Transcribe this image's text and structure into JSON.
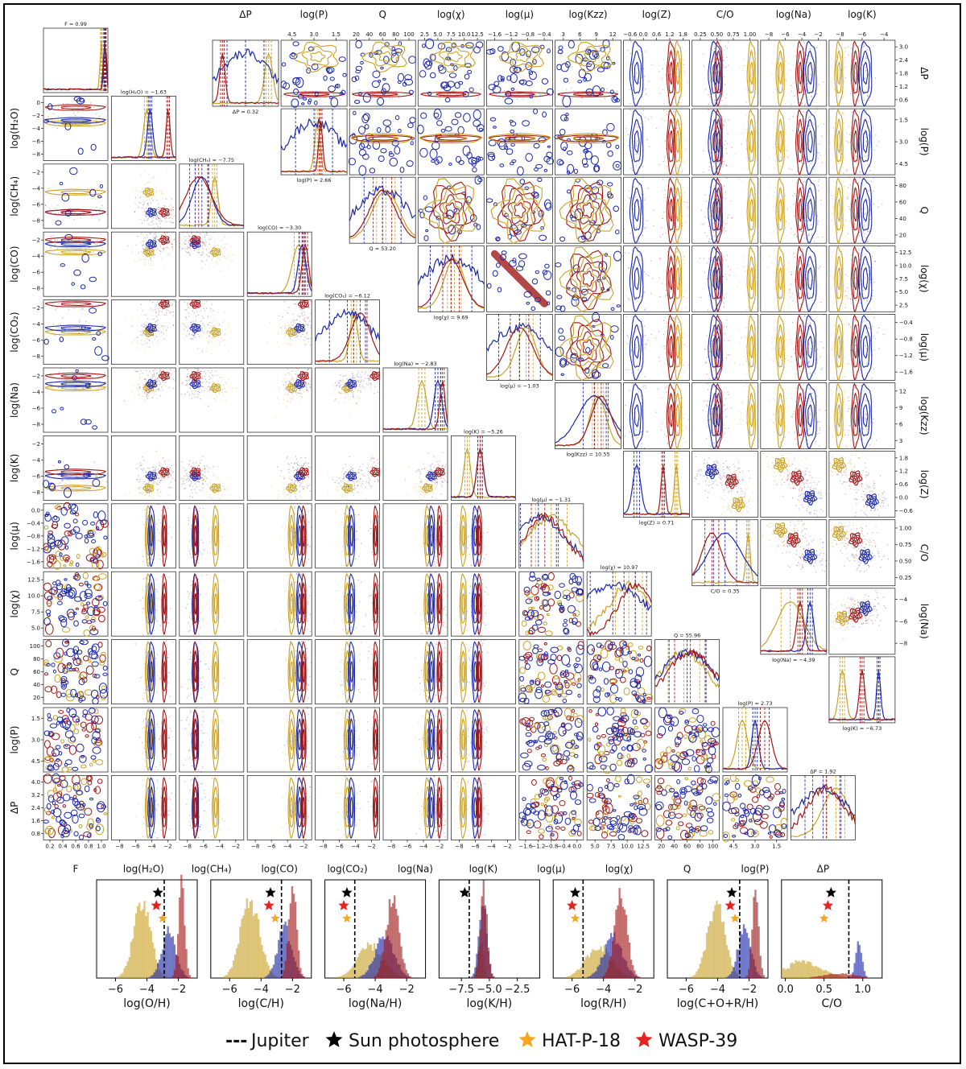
{
  "chart_data": [
    {
      "type": "corner",
      "name": "lower-corner",
      "x_params": [
        "F",
        "log(H₂O)",
        "log(CH₄)",
        "log(CO)",
        "log(CO₂)",
        "log(Na)",
        "log(K)",
        "log(μ)",
        "log(χ)",
        "Q",
        "log(P)",
        "ΔP"
      ],
      "row_params": [
        "log(H₂O)",
        "log(CH₄)",
        "log(CO)",
        "log(CO₂)",
        "log(Na)",
        "log(K)",
        "log(μ)",
        "log(χ)",
        "Q",
        "log(P)",
        "ΔP"
      ],
      "diag_titles": [
        "F = 0.99",
        "log(H₂O) = −1.63",
        "log(CH₄) = −7.75",
        "log(CO) = −3.30",
        "log(CO₂) = −6.12",
        "log(Na) = −2.83",
        "log(K) = −5.26",
        "log(μ) = −1.31",
        "log(χ) = 10.97",
        "Q = 55.96",
        "log(P) = 2.73",
        "ΔP = 1.92"
      ],
      "x_ticks": [
        [
          "0.2",
          "0.4",
          "0.6",
          "0.8",
          "1.0"
        ],
        [
          "−8",
          "−6",
          "−4",
          "−2"
        ],
        [
          "−8",
          "−6",
          "−4",
          "−2"
        ],
        [
          "−8",
          "−6",
          "−4",
          "−2"
        ],
        [
          "−8",
          "−6",
          "−4",
          "−2"
        ],
        [
          "−8",
          "−6",
          "−4",
          "−2"
        ],
        [
          "−8",
          "−6",
          "−4",
          "−2"
        ],
        [
          "−1.6",
          "−1.2",
          "−0.8",
          "−0.4",
          "0.0"
        ],
        [
          "5.0",
          "7.5",
          "10.0",
          "12.5"
        ],
        [
          "20",
          "40",
          "60",
          "80",
          "100"
        ],
        [
          "4.5",
          "3.0",
          "1.5"
        ],
        [
          "0.8",
          "1.6",
          "2.4",
          "3.2",
          "4.0"
        ]
      ],
      "row_ticks": [
        [
          "0",
          "−2",
          "−4",
          "−6",
          "−8"
        ],
        [
          "−2",
          "−4",
          "−6",
          "−8"
        ],
        [
          "−2",
          "−4",
          "−6",
          "−8"
        ],
        [
          "−2",
          "−4",
          "−6",
          "−8"
        ],
        [
          "−2",
          "−4",
          "−6",
          "−8"
        ],
        [
          "−2",
          "−4",
          "−6",
          "−8"
        ],
        [
          "0.0",
          "−0.4",
          "−0.8",
          "−1.2",
          "−1.6"
        ],
        [
          "12.5",
          "10.0",
          "7.5",
          "5.0"
        ],
        [
          "100",
          "80",
          "60",
          "40",
          "20"
        ],
        [
          "1.5",
          "3.0",
          "4.5"
        ],
        [
          "4.0",
          "3.2",
          "2.4",
          "1.6",
          "0.8"
        ]
      ],
      "ranges": [
        [
          0,
          1
        ],
        [
          -9,
          0
        ],
        [
          -9,
          -1
        ],
        [
          -9,
          -1
        ],
        [
          -9,
          -1
        ],
        [
          -9,
          -1
        ],
        [
          -9,
          -1
        ],
        [
          -1.8,
          0.1
        ],
        [
          2.5,
          14
        ],
        [
          10,
          100
        ],
        [
          6,
          0
        ],
        [
          0,
          4.2
        ]
      ],
      "cluster_centers": {
        "blue": [
          null,
          -3.4,
          -7.0,
          -2.5,
          -4.5,
          -3.0,
          -6.0,
          null,
          null,
          null,
          null,
          null
        ],
        "gold": [
          null,
          -3.8,
          -4.5,
          -3.5,
          -5.0,
          -3.5,
          -7.5,
          null,
          null,
          null,
          null,
          null
        ],
        "red": [
          null,
          -1.6,
          -7.0,
          -2.0,
          -1.5,
          -2.0,
          -5.5,
          null,
          null,
          null,
          null,
          null
        ]
      }
    },
    {
      "type": "corner",
      "name": "upper-corner",
      "col_params": [
        "ΔP",
        "log(P)",
        "Q",
        "log(χ)",
        "log(μ)",
        "log(Kzz)",
        "log(Z)",
        "C/O",
        "log(Na)",
        "log(K)"
      ],
      "row_params": [
        "ΔP",
        "log(P)",
        "Q",
        "log(χ)",
        "log(μ)",
        "log(Kzz)",
        "log(Z)",
        "C/O",
        "log(Na)"
      ],
      "diag_titles": [
        "ΔP = 0.32",
        "log(P) = 2.66",
        "Q = 53.20",
        "log(χ) = 9.69",
        "log(μ) = −1.03",
        "log(Kzz) = 10.55",
        "log(Z) = 0.71",
        "C/O = 0.35",
        "log(Na) = −4.39",
        "log(K) = −6.73"
      ],
      "top_ticks": [
        [
          "0.6",
          "1.2",
          "1.8",
          "2.4",
          "3.0"
        ],
        [
          "4.5",
          "3.0",
          "1.5"
        ],
        [
          "20",
          "40",
          "60",
          "80",
          "100"
        ],
        [
          "2.5",
          "5.0",
          "7.5",
          "10.0",
          "12.5"
        ],
        [
          "−1.6",
          "−1.2",
          "−0.8",
          "−0.4"
        ],
        [
          "3",
          "6",
          "9",
          "12"
        ],
        [
          "−0.6",
          "0.0",
          "0.6",
          "1.2",
          "1.8"
        ],
        [
          "0.25",
          "0.50",
          "0.75",
          "1.00"
        ],
        [
          "−8",
          "−6",
          "−4",
          "−2"
        ],
        [
          "−8",
          "−6",
          "−4"
        ]
      ],
      "right_ticks": [
        [
          "3.0",
          "2.4",
          "1.8",
          "1.2",
          "0.6"
        ],
        [
          "1.5",
          "3.0",
          "4.5"
        ],
        [
          "80",
          "60",
          "40",
          "20"
        ],
        [
          "12.5",
          "10.0",
          "7.5",
          "5.0",
          "2.5"
        ],
        [
          "−0.4",
          "−0.8",
          "−1.2",
          "−1.6"
        ],
        [
          "12",
          "9",
          "6",
          "3"
        ],
        [
          "1.8",
          "1.2",
          "0.6",
          "0.0",
          "−0.6"
        ],
        [
          "1.00",
          "0.75",
          "0.50",
          "0.25"
        ],
        [
          "−4",
          "−6",
          "−8"
        ]
      ]
    },
    {
      "type": "bar",
      "name": "histograms",
      "panels": [
        {
          "xlabel": "log(O/H)",
          "xticks": [
            "−6",
            "−4",
            "−2"
          ],
          "xlim": [
            -7.2,
            -0.8
          ],
          "jupiter": -2.9,
          "sun": -3.3,
          "wasp39": -3.4,
          "hatp18": -3.0,
          "gold": {
            "center": -4.3,
            "width": 0.55,
            "peak": 0.8
          },
          "blue": {
            "center": -2.6,
            "width": 0.45,
            "peak": 0.5
          },
          "red": {
            "center": -1.8,
            "width": 0.2,
            "peak": 1.0
          }
        },
        {
          "xlabel": "log(C/H)",
          "xticks": [
            "−6",
            "−4",
            "−2"
          ],
          "xlim": [
            -7.2,
            -0.8
          ],
          "jupiter": -2.7,
          "sun": -3.4,
          "wasp39": -3.5,
          "hatp18": -3.1,
          "gold": {
            "center": -4.7,
            "width": 0.6,
            "peak": 0.85
          },
          "blue": {
            "center": -2.5,
            "width": 0.45,
            "peak": 0.55
          },
          "red": {
            "center": -2.0,
            "width": 0.25,
            "peak": 1.0
          }
        },
        {
          "xlabel": "log(Na/H)",
          "xticks": [
            "−6",
            "−4",
            "−2"
          ],
          "xlim": [
            -7.2,
            -0.8
          ],
          "jupiter": -5.3,
          "sun": -5.8,
          "wasp39": -6.0,
          "hatp18": -5.8,
          "gold": {
            "center": -4.3,
            "width": 0.8,
            "peak": 0.35
          },
          "blue": {
            "center": -3.4,
            "width": 0.6,
            "peak": 0.45
          },
          "red": {
            "center": -2.9,
            "width": 0.4,
            "peak": 0.9
          }
        },
        {
          "xlabel": "log(K/H)",
          "xticks": [
            "−7.5",
            "−5.0",
            "−2.5"
          ],
          "xlim": [
            -9.5,
            -0.5
          ],
          "jupiter": -6.8,
          "sun": -7.2,
          "wasp39": null,
          "hatp18": null,
          "gold": {
            "center": -5.8,
            "width": 0.25,
            "peak": 0.4
          },
          "blue": {
            "center": -5.6,
            "width": 0.35,
            "peak": 0.85
          },
          "red": {
            "center": -5.5,
            "width": 0.3,
            "peak": 0.95
          }
        },
        {
          "xlabel": "log(R/H)",
          "xticks": [
            "−6",
            "−4",
            "−2"
          ],
          "xlim": [
            -7.2,
            -0.8
          ],
          "jupiter": -5.3,
          "sun": -5.8,
          "wasp39": -6.0,
          "hatp18": -5.8,
          "gold": {
            "center": -4.3,
            "width": 0.8,
            "peak": 0.35
          },
          "blue": {
            "center": -3.4,
            "width": 0.6,
            "peak": 0.45
          },
          "red": {
            "center": -2.9,
            "width": 0.4,
            "peak": 0.9
          }
        },
        {
          "xlabel": "log(C+O+R/H)",
          "xticks": [
            "−6",
            "−4",
            "−2"
          ],
          "xlim": [
            -7.2,
            -0.8
          ],
          "jupiter": -2.6,
          "sun": -3.1,
          "wasp39": -3.2,
          "hatp18": -2.9,
          "gold": {
            "center": -4.1,
            "width": 0.55,
            "peak": 0.8
          },
          "blue": {
            "center": -2.3,
            "width": 0.4,
            "peak": 0.55
          },
          "red": {
            "center": -1.6,
            "width": 0.2,
            "peak": 1.0
          }
        },
        {
          "xlabel": "C/O",
          "xticks": [
            "0.0",
            "0.5",
            "1.0"
          ],
          "xlim": [
            -0.05,
            1.25
          ],
          "jupiter": 0.82,
          "sun": 0.59,
          "wasp39": 0.55,
          "hatp18": 0.5,
          "gold": {
            "center": 0.2,
            "width": 0.25,
            "peak": 0.18
          },
          "blue": {
            "center": 0.95,
            "width": 0.04,
            "peak": 0.4
          },
          "red": {
            "center": 0.7,
            "width": 0.2,
            "peak": 0.05
          }
        }
      ]
    }
  ],
  "colors": {
    "blue": "#1c28a8",
    "gold": "#c9a227",
    "red": "#a01818",
    "black": "#000000",
    "hatp18_star": "#f5a623",
    "wasp39_star": "#e52320"
  },
  "legend": [
    {
      "symbol": "---",
      "label": "Jupiter"
    },
    {
      "symbol": "★",
      "label": "Sun photosphere"
    },
    {
      "symbol": "★",
      "label": "HAT-P-18"
    },
    {
      "symbol": "★",
      "label": "WASP-39"
    }
  ]
}
